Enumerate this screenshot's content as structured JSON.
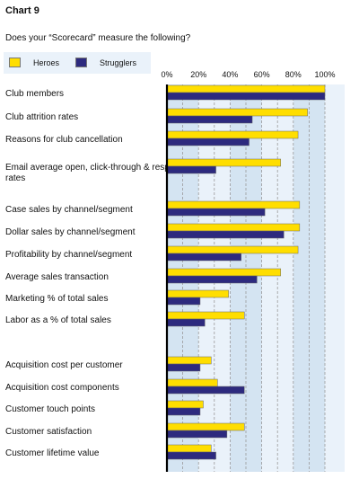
{
  "chart_title": "Chart 9",
  "question": "Does your “Scorecard” measure the following?",
  "legend": {
    "heroes": "Heroes",
    "strugglers": "Strugglers"
  },
  "colors": {
    "heroes": "#ffde00",
    "strugglers": "#2d2a7e",
    "band": "#d4e4f2",
    "band_alt": "#eaf2fa"
  },
  "chart_data": {
    "type": "bar",
    "orientation": "horizontal",
    "xlim": [
      0,
      100
    ],
    "ticks": [
      "0%",
      "20%",
      "40%",
      "60%",
      "80%",
      "100%"
    ],
    "categories": [
      "Club members",
      "Club attrition rates",
      "Reasons for club cancellation",
      "Email average open, click-through & response rates",
      "Case sales by channel/segment",
      "Dollar sales by channel/segment",
      "Profitability by channel/segment",
      "Average sales transaction",
      "Marketing % of total sales",
      "Labor as a % of total sales",
      "Acquisition cost per customer",
      "Acquisition cost components",
      "Customer touch points",
      "Customer satisfaction",
      "Customer lifetime value"
    ],
    "series": [
      {
        "name": "Heroes",
        "values": [
          100,
          89,
          83,
          72,
          84,
          84,
          83,
          72,
          39,
          49,
          28,
          32,
          23,
          49,
          28
        ]
      },
      {
        "name": "Strugglers",
        "values": [
          100,
          54,
          52,
          31,
          62,
          74,
          47,
          57,
          21,
          24,
          21,
          49,
          21,
          38,
          31
        ]
      }
    ],
    "grid": true
  }
}
